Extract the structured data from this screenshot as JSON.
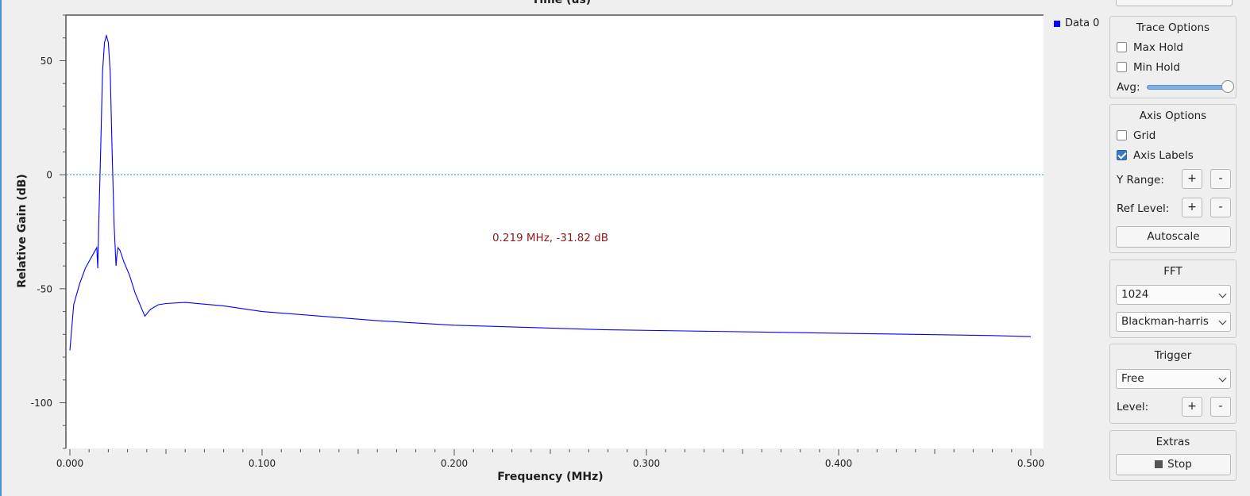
{
  "top_title": "Time (us)",
  "chart_data": {
    "type": "line",
    "xlabel": "Frequency (MHz)",
    "ylabel": "Relative Gain (dB)",
    "xlim": [
      0.0,
      0.5
    ],
    "ylim": [
      -120,
      70
    ],
    "x_ticks": [
      "0.000",
      "0.100",
      "0.200",
      "0.300",
      "0.400",
      "0.500"
    ],
    "y_ticks": [
      "50",
      "0",
      "-50",
      "-100"
    ],
    "reference_line_y": 0,
    "marker_readout": "0.219 MHz, -31.82 dB",
    "series": [
      {
        "name": "Data 0",
        "color": "#0000ff",
        "x": [
          0.0,
          0.002,
          0.005,
          0.008,
          0.012,
          0.014,
          0.0145,
          0.015,
          0.016,
          0.017,
          0.018,
          0.019,
          0.02,
          0.021,
          0.022,
          0.023,
          0.024,
          0.0245,
          0.025,
          0.026,
          0.028,
          0.031,
          0.034,
          0.037,
          0.039,
          0.042,
          0.046,
          0.05,
          0.06,
          0.08,
          0.1,
          0.13,
          0.16,
          0.2,
          0.24,
          0.28,
          0.32,
          0.36,
          0.4,
          0.44,
          0.48,
          0.5
        ],
        "y": [
          -77,
          -57,
          -48,
          -41,
          -35,
          -32,
          -41,
          -22,
          10,
          45,
          58,
          61,
          58,
          45,
          10,
          -22,
          -40,
          -35,
          -32,
          -33,
          -38,
          -44,
          -52,
          -58,
          -62,
          -59,
          -57,
          -56.5,
          -56,
          -57.5,
          -60,
          -62,
          -64,
          -66,
          -67,
          -68,
          -68.5,
          -69,
          -69.5,
          -70,
          -70.5,
          -71
        ]
      }
    ]
  },
  "legend": {
    "label": "Data 0",
    "color": "#0000ff"
  },
  "trace_options": {
    "title": "Trace Options",
    "max_hold_label": "Max Hold",
    "max_hold_checked": false,
    "min_hold_label": "Min Hold",
    "min_hold_checked": false,
    "avg_label": "Avg:",
    "avg_level": 1.0
  },
  "axis_options": {
    "title": "Axis Options",
    "grid_label": "Grid",
    "grid_checked": false,
    "axis_labels_label": "Axis Labels",
    "axis_labels_checked": true,
    "y_range_label": "Y Range:",
    "ref_level_label": "Ref Level:",
    "plus": "+",
    "minus": "-",
    "autoscale_label": "Autoscale"
  },
  "fft": {
    "title": "FFT",
    "size_value": "1024",
    "window_value": "Blackman-harris"
  },
  "trigger": {
    "title": "Trigger",
    "mode_value": "Free",
    "level_label": "Level:"
  },
  "extras": {
    "title": "Extras",
    "stop_label": "Stop"
  }
}
